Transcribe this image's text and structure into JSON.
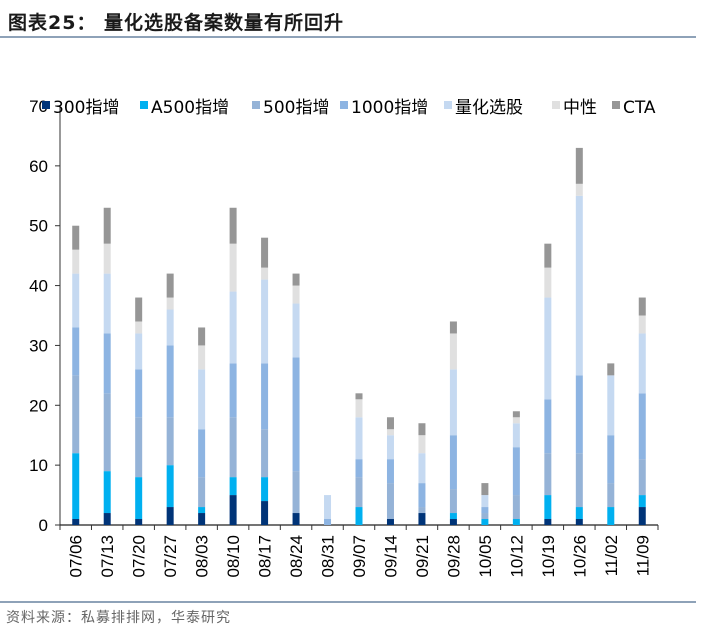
{
  "title": "图表25：  量化选股备案数量有所回升",
  "source": "资料来源：私募排排网，华泰研究",
  "chart_data": {
    "type": "bar",
    "stacked": true,
    "title": "量化选股备案数量有所回升",
    "xlabel": "",
    "ylabel": "",
    "ylim": [
      0,
      70
    ],
    "yticks": [
      0,
      10,
      20,
      30,
      40,
      50,
      60,
      70
    ],
    "legend_position": "top",
    "categories": [
      "07/06",
      "07/13",
      "07/20",
      "07/27",
      "08/03",
      "08/10",
      "08/17",
      "08/24",
      "08/31",
      "09/07",
      "09/14",
      "09/21",
      "09/28",
      "10/05",
      "10/12",
      "10/19",
      "10/26",
      "11/02",
      "11/09"
    ],
    "series": [
      {
        "name": "300指增",
        "color": "#003478",
        "values": [
          1,
          2,
          1,
          3,
          2,
          5,
          4,
          2,
          0,
          0,
          1,
          2,
          1,
          0,
          0,
          1,
          1,
          0,
          3
        ]
      },
      {
        "name": "A500指增",
        "color": "#00b0f0",
        "values": [
          11,
          7,
          7,
          7,
          1,
          3,
          4,
          0,
          0,
          3,
          0,
          0,
          1,
          1,
          1,
          4,
          2,
          3,
          2
        ]
      },
      {
        "name": "500指增",
        "color": "#95b3d7",
        "values": [
          13,
          13,
          10,
          8,
          5,
          10,
          8,
          7,
          0,
          5,
          6,
          1,
          4,
          1,
          4,
          7,
          9,
          4,
          6
        ]
      },
      {
        "name": "1000指增",
        "color": "#8db4e2",
        "values": [
          8,
          10,
          8,
          12,
          8,
          9,
          11,
          19,
          1,
          3,
          4,
          4,
          9,
          1,
          8,
          9,
          13,
          8,
          11
        ]
      },
      {
        "name": "量化选股",
        "color": "#c5d9f1",
        "values": [
          9,
          10,
          6,
          6,
          10,
          12,
          14,
          9,
          4,
          7,
          4,
          5,
          11,
          2,
          4,
          17,
          30,
          10,
          10
        ]
      },
      {
        "name": "中性",
        "color": "#e0e0e0",
        "values": [
          4,
          5,
          2,
          2,
          4,
          8,
          2,
          3,
          0,
          3,
          1,
          3,
          6,
          0,
          1,
          5,
          2,
          0,
          3
        ]
      },
      {
        "name": "CTA",
        "color": "#969696",
        "values": [
          4,
          6,
          4,
          4,
          3,
          6,
          5,
          2,
          0,
          1,
          2,
          2,
          2,
          2,
          1,
          4,
          6,
          2,
          3
        ]
      }
    ]
  }
}
